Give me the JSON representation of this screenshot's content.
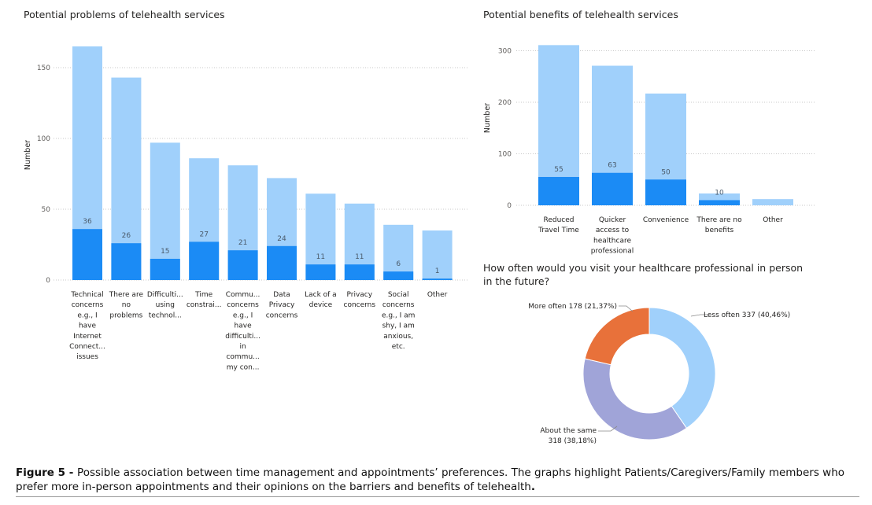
{
  "colors": {
    "total": "#a0d0fb",
    "subset": "#1b8bf5",
    "donut_less": "#a0d0fb",
    "donut_same": "#a0a4d8",
    "donut_more": "#e8713a",
    "grid": "#c8c8c8"
  },
  "chart_data": [
    {
      "type": "bar",
      "title": "Potential problems of telehealth services",
      "ylabel": "Number",
      "xlabel": "",
      "ylim": [
        0,
        165
      ],
      "yticks": [
        0,
        50,
        100,
        150
      ],
      "grid": true,
      "categories": [
        [
          "Technical",
          "concerns",
          "e.g., I",
          "have",
          "Internet",
          "Connect...",
          "issues"
        ],
        [
          "There are",
          "no",
          "problems"
        ],
        [
          "Difficulti...",
          "using",
          "technol..."
        ],
        [
          "Time",
          "constrai..."
        ],
        [
          "Commu...",
          "concerns",
          "e.g., I",
          "have",
          "difficulti...",
          "in",
          "commu...",
          "my con..."
        ],
        [
          "Data",
          "Privacy",
          "concerns"
        ],
        [
          "Lack of a",
          "device"
        ],
        [
          "Privacy",
          "concerns"
        ],
        [
          "Social",
          "concerns",
          "e.g., I am",
          "shy, I am",
          "anxious,",
          "etc."
        ],
        [
          "Other"
        ]
      ],
      "series": [
        {
          "values": [
            165,
            143,
            97,
            86,
            81,
            72,
            61,
            54,
            39,
            35
          ]
        },
        {
          "values": [
            36,
            26,
            15,
            27,
            21,
            24,
            11,
            11,
            6,
            1
          ]
        }
      ],
      "data_labels": [
        "36",
        "26",
        "15",
        "27",
        "21",
        "24",
        "11",
        "11",
        "6",
        "1"
      ]
    },
    {
      "type": "bar",
      "title": "Potential benefits of telehealth services",
      "ylabel": "Number",
      "xlabel": "",
      "ylim": [
        0,
        310
      ],
      "yticks": [
        0,
        100,
        200,
        300
      ],
      "grid": true,
      "categories": [
        [
          "Reduced",
          "Travel Time"
        ],
        [
          "Quicker",
          "access to",
          "healthcare",
          "professional"
        ],
        [
          "Convenience"
        ],
        [
          "There are no",
          "benefits"
        ],
        [
          "Other"
        ]
      ],
      "series": [
        {
          "values": [
            311,
            271,
            217,
            23,
            12
          ]
        },
        {
          "values": [
            55,
            63,
            50,
            10,
            0
          ]
        }
      ],
      "data_labels": [
        "55",
        "63",
        "50",
        "10",
        ""
      ]
    },
    {
      "type": "pie",
      "title_lines": [
        "How often would you visit your healthcare professional in person",
        "in the future?"
      ],
      "slices": [
        {
          "label": "Less often",
          "value": 337,
          "percent": "40,46%",
          "text": "Less often 337 (40,46%)"
        },
        {
          "label": "About the same",
          "value": 318,
          "percent": "38,18%",
          "text_lines": [
            "About the same",
            "318 (38,18%)"
          ]
        },
        {
          "label": "More often",
          "value": 178,
          "percent": "21,37%",
          "text": "More often 178 (21,37%)"
        }
      ]
    }
  ],
  "caption": {
    "label": "Figure 5 - ",
    "text": "Possible association between time management and appointments’ preferences. The graphs highlight Patients/Caregivers/Family members who prefer more in-person appointments and their opinions on the barriers and benefits of telehealth",
    "end": "."
  }
}
